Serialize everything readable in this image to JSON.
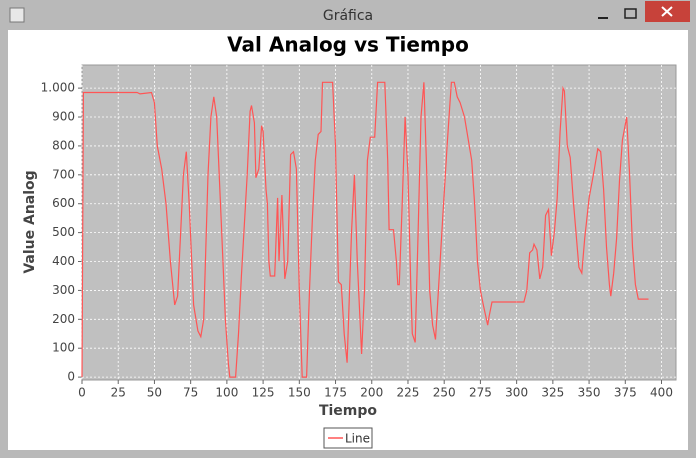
{
  "window": {
    "title": "Gráfica"
  },
  "chart_data": {
    "type": "line",
    "title": "Val Analog vs Tiempo",
    "xlabel": "Tiempo",
    "ylabel": "Value Analog",
    "x": [
      0,
      1,
      38,
      40,
      48,
      50,
      52,
      55,
      58,
      61,
      64,
      66,
      70,
      72,
      74,
      77,
      80,
      82,
      84,
      87,
      89,
      91,
      93,
      96,
      99,
      101,
      102,
      106,
      108,
      110,
      114,
      116,
      117,
      119,
      120,
      122,
      124,
      125,
      127,
      128,
      129,
      130,
      133,
      135,
      136,
      138,
      140,
      142,
      144,
      146,
      148,
      150,
      152,
      155,
      157,
      159,
      161,
      163,
      165,
      166,
      173,
      175,
      177,
      179,
      181,
      183,
      186,
      188,
      190,
      193,
      195,
      197,
      199,
      202,
      204,
      209,
      211,
      212,
      215,
      217,
      218,
      219,
      221,
      223,
      225,
      227,
      228,
      230,
      232,
      234,
      236,
      238,
      240,
      242,
      244,
      246,
      249,
      252,
      254,
      255,
      257,
      259,
      261,
      264,
      269,
      271,
      273,
      275,
      277,
      280,
      281,
      283,
      305,
      307,
      309,
      311,
      312,
      314,
      316,
      318,
      320,
      322,
      324,
      326,
      328,
      330,
      332,
      333,
      335,
      337,
      339,
      341,
      343,
      345,
      347,
      350,
      353,
      356,
      358,
      360,
      362,
      364,
      365,
      367,
      369,
      371,
      373,
      376,
      378,
      380,
      382,
      384,
      391
    ],
    "series": [
      {
        "name": "Line",
        "color": "#ff5555",
        "values": [
          0,
          985,
          985,
          980,
          985,
          950,
          800,
          720,
          600,
          400,
          250,
          280,
          700,
          780,
          600,
          250,
          160,
          140,
          200,
          700,
          900,
          970,
          900,
          550,
          200,
          50,
          0,
          0,
          150,
          350,
          700,
          920,
          940,
          880,
          690,
          720,
          870,
          850,
          650,
          600,
          400,
          350,
          350,
          620,
          400,
          630,
          340,
          400,
          770,
          780,
          720,
          300,
          0,
          0,
          300,
          550,
          750,
          840,
          850,
          1020,
          1020,
          800,
          330,
          320,
          150,
          50,
          500,
          700,
          400,
          80,
          300,
          750,
          830,
          830,
          1020,
          1020,
          750,
          510,
          510,
          400,
          320,
          320,
          600,
          900,
          700,
          300,
          150,
          120,
          500,
          900,
          1020,
          700,
          300,
          180,
          130,
          300,
          550,
          800,
          950,
          1020,
          1020,
          970,
          950,
          900,
          750,
          600,
          400,
          300,
          250,
          180,
          210,
          260,
          260,
          300,
          430,
          440,
          460,
          440,
          340,
          380,
          560,
          580,
          420,
          500,
          620,
          850,
          1000,
          990,
          800,
          760,
          620,
          500,
          380,
          360,
          480,
          620,
          700,
          790,
          780,
          650,
          450,
          320,
          280,
          360,
          480,
          680,
          820,
          900,
          700,
          450,
          320,
          270,
          270
        ]
      }
    ],
    "xlim": [
      0,
      410
    ],
    "ylim": [
      -10,
      1080
    ],
    "xticks": [
      0,
      25,
      50,
      75,
      100,
      125,
      150,
      175,
      200,
      225,
      250,
      275,
      300,
      325,
      350,
      375,
      400
    ],
    "yticks": [
      0,
      100,
      200,
      300,
      400,
      500,
      600,
      700,
      800,
      900,
      {
        "value": 1000,
        "label": "1.000"
      }
    ],
    "grid": true
  }
}
